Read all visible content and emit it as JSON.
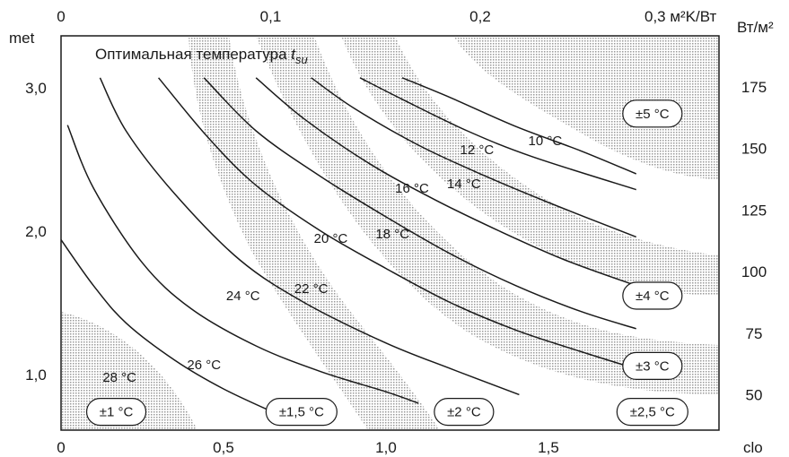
{
  "chart_data": {
    "type": "line",
    "title": "Оптимальная температура ",
    "title_sub": "su",
    "title_var": "t",
    "x": {
      "label": "clo",
      "range": [
        0,
        2.0
      ],
      "ticks": [
        {
          "value": 0,
          "label": "0"
        },
        {
          "value": 0.5,
          "label": "0,5"
        },
        {
          "value": 1.0,
          "label": "1,0"
        },
        {
          "value": 1.5,
          "label": "1,5"
        }
      ]
    },
    "x_top": {
      "label": "0,3 м²K/Вт",
      "ticks": [
        {
          "value": 0,
          "label": "0"
        },
        {
          "value": 0.1,
          "label": "0,1"
        },
        {
          "value": 0.2,
          "label": "0,2"
        }
      ],
      "clo_per_unit": 6.45
    },
    "y": {
      "label": "met",
      "range": [
        0.6,
        3.3
      ],
      "ticks": [
        {
          "value": 1.0,
          "label": "1,0"
        },
        {
          "value": 2.0,
          "label": "2,0"
        },
        {
          "value": 3.0,
          "label": "3,0"
        }
      ]
    },
    "y_right": {
      "label": "Вт/м²",
      "ticks": [
        {
          "value": 50,
          "label": "50"
        },
        {
          "value": 75,
          "label": "75"
        },
        {
          "value": 100,
          "label": "100"
        },
        {
          "value": 125,
          "label": "125"
        },
        {
          "value": 150,
          "label": "150"
        },
        {
          "value": 175,
          "label": "175"
        }
      ],
      "w_per_met": 58.2
    },
    "series": [
      {
        "name": "28 °C",
        "points": [
          [
            0.02,
            0.78
          ],
          [
            0.18,
            0.7
          ]
        ],
        "label_at": [
          0.18,
          0.98
        ]
      },
      {
        "name": "26 °C",
        "points": [
          [
            0.0,
            1.94
          ],
          [
            0.1,
            1.62
          ],
          [
            0.2,
            1.36
          ],
          [
            0.35,
            1.1
          ],
          [
            0.5,
            0.9
          ],
          [
            0.67,
            0.72
          ]
        ],
        "label_at": [
          0.44,
          1.07
        ]
      },
      {
        "name": "24 °C",
        "points": [
          [
            0.02,
            2.74
          ],
          [
            0.1,
            2.3
          ],
          [
            0.25,
            1.78
          ],
          [
            0.4,
            1.46
          ],
          [
            0.6,
            1.2
          ],
          [
            0.8,
            1.02
          ],
          [
            1.0,
            0.88
          ],
          [
            1.1,
            0.8
          ]
        ],
        "label_at": [
          0.56,
          1.55
        ]
      },
      {
        "name": "22 °C",
        "points": [
          [
            0.12,
            3.07
          ],
          [
            0.2,
            2.7
          ],
          [
            0.35,
            2.26
          ],
          [
            0.55,
            1.8
          ],
          [
            0.75,
            1.5
          ],
          [
            1.0,
            1.22
          ],
          [
            1.2,
            1.04
          ],
          [
            1.41,
            0.86
          ]
        ],
        "label_at": [
          0.77,
          1.6
        ]
      },
      {
        "name": "20 °C",
        "points": [
          [
            0.3,
            3.07
          ],
          [
            0.45,
            2.66
          ],
          [
            0.6,
            2.32
          ],
          [
            0.8,
            2.0
          ],
          [
            1.0,
            1.74
          ],
          [
            1.2,
            1.5
          ],
          [
            1.4,
            1.31
          ],
          [
            1.6,
            1.16
          ],
          [
            1.77,
            1.04
          ]
        ],
        "label_at": [
          0.83,
          1.95
        ]
      },
      {
        "name": "18 °C",
        "points": [
          [
            0.44,
            3.07
          ],
          [
            0.6,
            2.7
          ],
          [
            0.8,
            2.38
          ],
          [
            1.0,
            2.1
          ],
          [
            1.2,
            1.84
          ],
          [
            1.4,
            1.62
          ],
          [
            1.6,
            1.44
          ],
          [
            1.77,
            1.32
          ]
        ],
        "label_at": [
          1.02,
          1.98
        ]
      },
      {
        "name": "16 °C",
        "points": [
          [
            0.6,
            3.07
          ],
          [
            0.75,
            2.78
          ],
          [
            0.95,
            2.47
          ],
          [
            1.15,
            2.22
          ],
          [
            1.35,
            2.0
          ],
          [
            1.55,
            1.8
          ],
          [
            1.77,
            1.62
          ]
        ],
        "label_at": [
          1.08,
          2.3
        ]
      },
      {
        "name": "14 °C",
        "points": [
          [
            0.77,
            3.07
          ],
          [
            0.9,
            2.86
          ],
          [
            1.1,
            2.6
          ],
          [
            1.3,
            2.39
          ],
          [
            1.5,
            2.2
          ],
          [
            1.77,
            1.96
          ]
        ],
        "label_at": [
          1.24,
          2.33
        ]
      },
      {
        "name": "12 °C",
        "points": [
          [
            0.92,
            3.07
          ],
          [
            1.05,
            2.92
          ],
          [
            1.25,
            2.7
          ],
          [
            1.45,
            2.52
          ],
          [
            1.77,
            2.29
          ]
        ],
        "label_at": [
          1.28,
          2.57
        ]
      },
      {
        "name": "10 °C",
        "points": [
          [
            1.05,
            3.07
          ],
          [
            1.2,
            2.93
          ],
          [
            1.4,
            2.73
          ],
          [
            1.6,
            2.56
          ],
          [
            1.77,
            2.4
          ]
        ],
        "label_at": [
          1.49,
          2.63
        ]
      }
    ],
    "tolerance_bands": [
      {
        "label": "±1 °C",
        "anchor": [
          0.17,
          0.74
        ]
      },
      {
        "label": "±1,5 °C",
        "anchor": [
          0.74,
          0.74
        ]
      },
      {
        "label": "±2 °C",
        "anchor": [
          1.24,
          0.74
        ]
      },
      {
        "label": "±2,5 °C",
        "anchor": [
          1.82,
          0.74
        ]
      },
      {
        "label": "±3 °C",
        "anchor": [
          1.82,
          1.06
        ]
      },
      {
        "label": "±4 °C",
        "anchor": [
          1.82,
          1.55
        ]
      },
      {
        "label": "±5 °C",
        "anchor": [
          1.82,
          2.82
        ]
      }
    ],
    "grid": false
  }
}
